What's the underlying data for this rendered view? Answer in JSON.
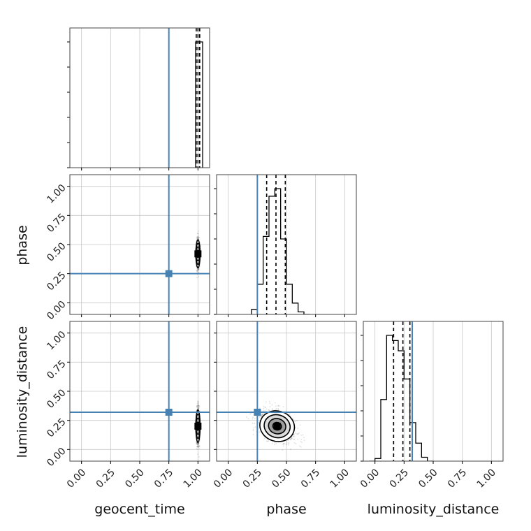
{
  "chart_data": {
    "type": "corner",
    "parameters": [
      "geocent_time",
      "phase",
      "luminosity_distance"
    ],
    "axis_labels": {
      "geocent_time": "geocent_time",
      "phase": "phase",
      "luminosity_distance": "luminosity_distance"
    },
    "tick_labels": [
      "0.00",
      "0.25",
      "0.50",
      "0.75",
      "1.00"
    ],
    "tick_values": [
      0.0,
      0.25,
      0.5,
      0.75,
      1.0
    ],
    "axis_range": [
      -0.1,
      1.1
    ],
    "grid": true,
    "truth_color": "#4682b4",
    "contour_color": "#000000",
    "truths": {
      "geocent_time": 0.75,
      "phase": 0.25,
      "luminosity_distance": 0.32
    },
    "quantiles": {
      "geocent_time": [
        0.985,
        1.0,
        1.015
      ],
      "phase": [
        0.33,
        0.41,
        0.49
      ],
      "luminosity_distance": [
        0.16,
        0.24,
        0.3
      ]
    },
    "histograms": {
      "geocent_time": {
        "bin_edges": [
          0.98,
          1.04
        ],
        "counts": [
          1.0
        ]
      },
      "phase": {
        "bin_edges": [
          0.2,
          0.25,
          0.3,
          0.35,
          0.4,
          0.45,
          0.5,
          0.55,
          0.6,
          0.65,
          0.7
        ],
        "counts": [
          0.04,
          0.24,
          0.62,
          0.94,
          1.0,
          0.6,
          0.24,
          0.09,
          0.02,
          0.0
        ]
      },
      "luminosity_distance": {
        "bin_edges": [
          -0.05,
          0.0,
          0.05,
          0.1,
          0.15,
          0.2,
          0.25,
          0.3,
          0.35,
          0.4,
          0.45,
          0.5
        ],
        "counts": [
          0.0,
          0.02,
          0.48,
          0.98,
          0.94,
          0.86,
          0.64,
          0.3,
          0.14,
          0.03,
          0.0
        ]
      }
    },
    "posteriors_2d": [
      {
        "x": "geocent_time",
        "y": "phase",
        "center": [
          1.0,
          0.42
        ],
        "sigma": [
          0.006,
          0.06
        ],
        "corr": 0.0
      },
      {
        "x": "geocent_time",
        "y": "luminosity_distance",
        "center": [
          1.0,
          0.2
        ],
        "sigma": [
          0.006,
          0.07
        ],
        "corr": 0.0
      },
      {
        "x": "phase",
        "y": "luminosity_distance",
        "center": [
          0.42,
          0.2
        ],
        "sigma": [
          0.075,
          0.065
        ],
        "corr": -0.35
      }
    ]
  }
}
